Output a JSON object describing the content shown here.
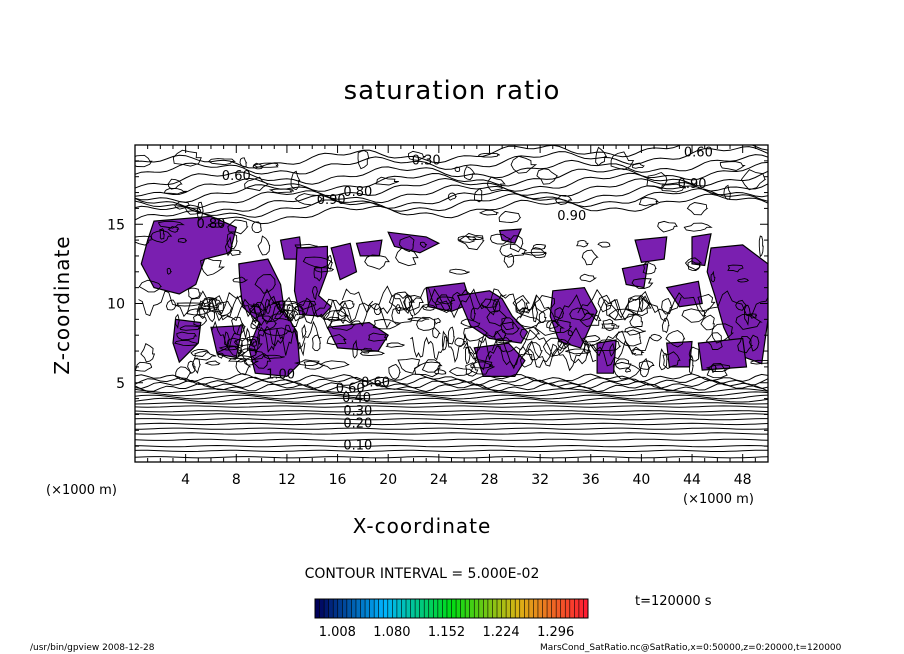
{
  "chart_data": {
    "type": "contour",
    "title": "saturation ratio",
    "xlabel": "X-coordinate",
    "ylabel": "Z-coordinate",
    "x_unit": "(×1000 m)",
    "xlim": [
      0,
      50
    ],
    "ylim": [
      0,
      20
    ],
    "x_ticks": [
      "4",
      "8",
      "12",
      "16",
      "20",
      "24",
      "28",
      "32",
      "36",
      "40",
      "44",
      "48"
    ],
    "y_ticks": [
      "5",
      "10",
      "15"
    ],
    "contour_interval_text": "CONTOUR INTERVAL = 5.000E-02",
    "contour_labels": [
      {
        "text": "0.10",
        "x": 17.6,
        "z": 1.0
      },
      {
        "text": "0.20",
        "x": 17.6,
        "z": 2.4
      },
      {
        "text": "0.30",
        "x": 17.6,
        "z": 3.2
      },
      {
        "text": "0.40",
        "x": 17.5,
        "z": 4.0
      },
      {
        "text": "0.60",
        "x": 17.0,
        "z": 4.6
      },
      {
        "text": "0.60",
        "x": 19.0,
        "z": 5.0
      },
      {
        "text": "1.00",
        "x": 11.5,
        "z": 5.5
      },
      {
        "text": "0.80",
        "x": 17.6,
        "z": 17.0
      },
      {
        "text": "0.90",
        "x": 15.5,
        "z": 16.5
      },
      {
        "text": "0.60",
        "x": 8.0,
        "z": 18.0
      },
      {
        "text": "0.30",
        "x": 23.0,
        "z": 19.0
      },
      {
        "text": "0.90",
        "x": 34.5,
        "z": 15.5
      },
      {
        "text": "0.60",
        "x": 44.5,
        "z": 19.5
      },
      {
        "text": "0.90",
        "x": 44.0,
        "z": 17.5
      },
      {
        "text": "0.80",
        "x": 6.0,
        "z": 15.0
      }
    ],
    "colorbar": {
      "ticks": [
        "1.008",
        "1.080",
        "1.152",
        "1.224",
        "1.296"
      ],
      "colormap": "rainbow"
    },
    "time_text": "t=120000 s",
    "fill_color": "#7a1fb0"
  },
  "footer": {
    "left": "/usr/bin/gpview  2008-12-28",
    "right": "MarsCond_SatRatio.nc@SatRatio,x=0:50000,z=0:20000,t=120000"
  }
}
